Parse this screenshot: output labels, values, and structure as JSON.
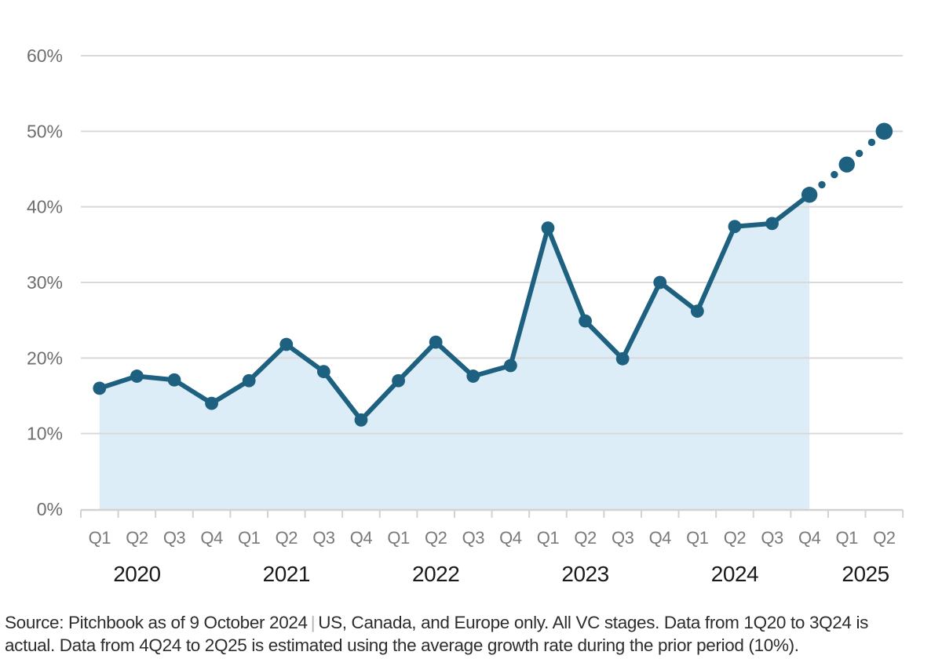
{
  "chart_data": {
    "type": "area",
    "subtype": "line-with-area-fill-and-dotted-forecast",
    "unit": "%",
    "ylim": [
      0,
      60
    ],
    "y_tick_labels": [
      "0%",
      "10%",
      "20%",
      "30%",
      "40%",
      "50%",
      "60%"
    ],
    "y_tick_values": [
      0,
      10,
      20,
      30,
      40,
      50,
      60
    ],
    "grid": "horizontal",
    "legend": "none",
    "title": "",
    "points": [
      {
        "quarter": "Q1",
        "year": 2020,
        "value": 16.0,
        "estimated": false
      },
      {
        "quarter": "Q2",
        "year": 2020,
        "value": 17.6,
        "estimated": false
      },
      {
        "quarter": "Q3",
        "year": 2020,
        "value": 17.1,
        "estimated": false
      },
      {
        "quarter": "Q4",
        "year": 2020,
        "value": 14.0,
        "estimated": false
      },
      {
        "quarter": "Q1",
        "year": 2021,
        "value": 17.0,
        "estimated": false
      },
      {
        "quarter": "Q2",
        "year": 2021,
        "value": 21.8,
        "estimated": false
      },
      {
        "quarter": "Q3",
        "year": 2021,
        "value": 18.2,
        "estimated": false
      },
      {
        "quarter": "Q4",
        "year": 2021,
        "value": 11.8,
        "estimated": false
      },
      {
        "quarter": "Q1",
        "year": 2022,
        "value": 17.0,
        "estimated": false
      },
      {
        "quarter": "Q2",
        "year": 2022,
        "value": 22.1,
        "estimated": false
      },
      {
        "quarter": "Q3",
        "year": 2022,
        "value": 17.6,
        "estimated": false
      },
      {
        "quarter": "Q4",
        "year": 2022,
        "value": 19.0,
        "estimated": false
      },
      {
        "quarter": "Q1",
        "year": 2023,
        "value": 37.2,
        "estimated": false
      },
      {
        "quarter": "Q2",
        "year": 2023,
        "value": 24.9,
        "estimated": false
      },
      {
        "quarter": "Q3",
        "year": 2023,
        "value": 19.9,
        "estimated": false
      },
      {
        "quarter": "Q4",
        "year": 2023,
        "value": 30.0,
        "estimated": false
      },
      {
        "quarter": "Q1",
        "year": 2024,
        "value": 26.2,
        "estimated": false
      },
      {
        "quarter": "Q2",
        "year": 2024,
        "value": 37.4,
        "estimated": false
      },
      {
        "quarter": "Q3",
        "year": 2024,
        "value": 37.8,
        "estimated": false
      },
      {
        "quarter": "Q4",
        "year": 2024,
        "value": 41.6,
        "estimated": true
      },
      {
        "quarter": "Q1",
        "year": 2025,
        "value": 45.6,
        "estimated": true
      },
      {
        "quarter": "Q2",
        "year": 2025,
        "value": 50.0,
        "estimated": true
      }
    ],
    "year_groups": [
      {
        "label": "2020",
        "count": 4
      },
      {
        "label": "2021",
        "count": 4
      },
      {
        "label": "2022",
        "count": 4
      },
      {
        "label": "2023",
        "count": 4
      },
      {
        "label": "2024",
        "count": 4
      },
      {
        "label": "2025",
        "count": 2
      }
    ],
    "solid_line_last_index": 19,
    "area_fill_last_index": 19,
    "colors": {
      "line": "#1d6080",
      "marker": "#1d6080",
      "area_fill": "#ddedf7",
      "gridline": "#d9d9d9",
      "axis": "#d2d2d2",
      "y_tick_label": "#6e6e6e",
      "quarter_label": "#7a7a7a",
      "year_label": "#1a1a1a"
    }
  },
  "footer": {
    "line1_part1": "Source: Pitchbook as of 9 October 2024",
    "separator": "|",
    "line1_part2": "US, Canada, and Europe only. All VC stages. Data from 1Q20 to 3Q24 is",
    "line2": "actual. Data from 4Q24 to 2Q25 is estimated using the average growth rate during the prior period (10%)."
  }
}
